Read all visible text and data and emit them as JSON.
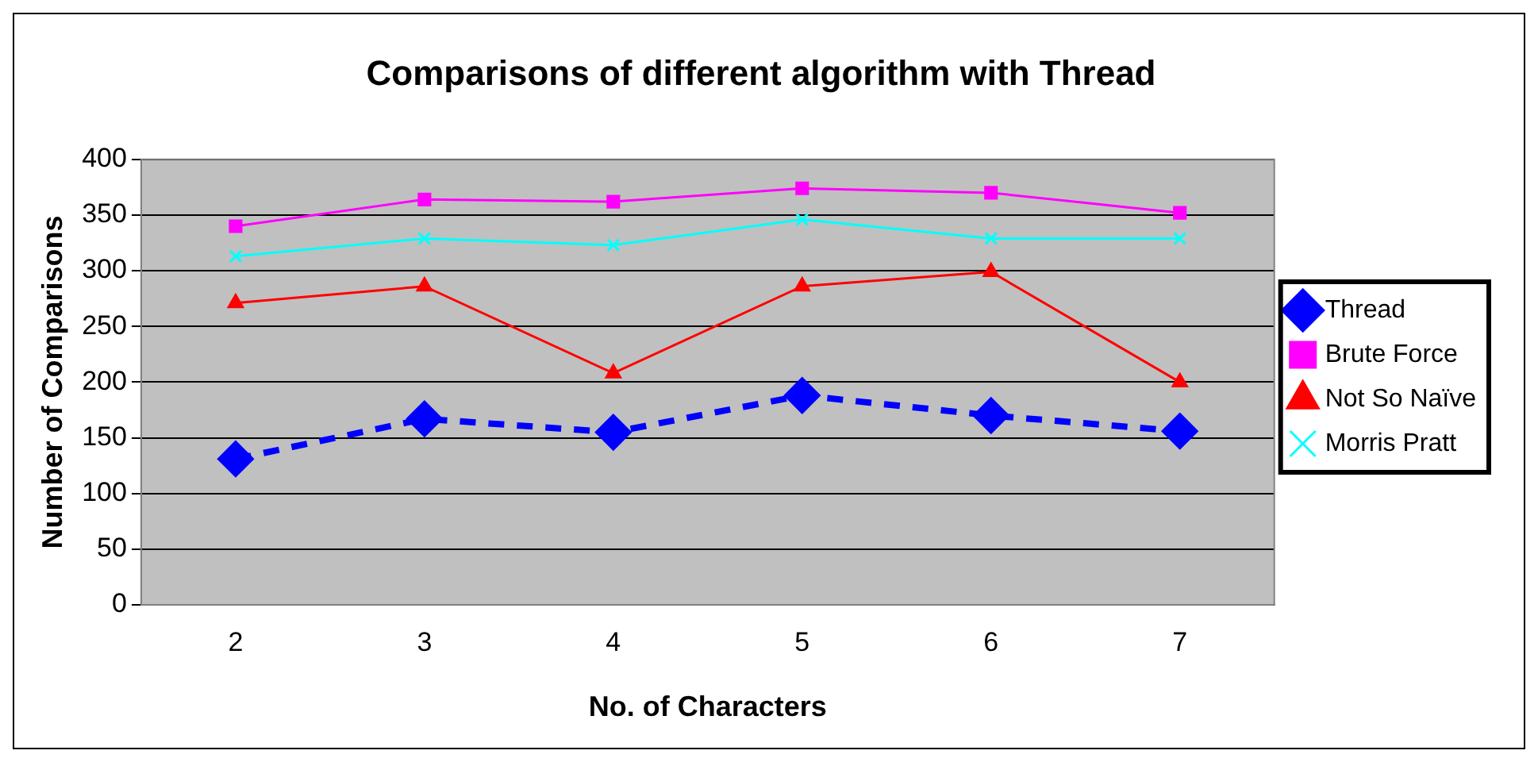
{
  "chart_data": {
    "type": "line",
    "title": "Comparisons of different algorithm with Thread",
    "xlabel": "No. of Characters",
    "ylabel": "Number of Comparisons",
    "categories": [
      "2",
      "3",
      "4",
      "5",
      "6",
      "7"
    ],
    "series": [
      {
        "name": "Thread",
        "color": "#0000ff",
        "marker": "diamond",
        "line_style": "dashed",
        "values": [
          131,
          167,
          155,
          188,
          170,
          156
        ]
      },
      {
        "name": "Brute Force",
        "color": "#ff00ff",
        "marker": "square",
        "line_style": "solid",
        "values": [
          340,
          364,
          362,
          374,
          370,
          352
        ]
      },
      {
        "name": "Not So Naïve",
        "color": "#ff0000",
        "marker": "triangle",
        "line_style": "solid",
        "values": [
          271,
          286,
          208,
          286,
          299,
          200
        ]
      },
      {
        "name": "Morris Pratt",
        "color": "#00ffff",
        "marker": "cross",
        "line_style": "solid",
        "values": [
          313,
          329,
          323,
          346,
          329,
          329
        ]
      }
    ],
    "ylim": [
      0,
      400
    ],
    "yticks": [
      0,
      50,
      100,
      150,
      200,
      250,
      300,
      350,
      400
    ],
    "grid": "y",
    "legend": "right"
  }
}
